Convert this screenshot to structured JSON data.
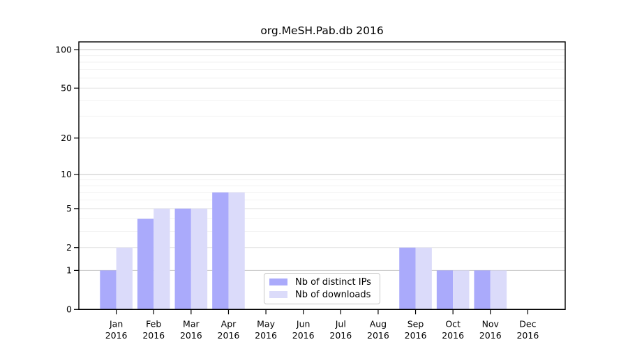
{
  "window": {
    "background": "#ffffff"
  },
  "chart_data": {
    "type": "bar",
    "title": "org.MeSH.Pab.db 2016",
    "categories": [
      "Jan",
      "Feb",
      "Mar",
      "Apr",
      "May",
      "Jun",
      "Jul",
      "Aug",
      "Sep",
      "Oct",
      "Nov",
      "Dec"
    ],
    "category_year": "2016",
    "series": [
      {
        "name": "Nb of distinct IPs",
        "color": "#aaaafb",
        "values": [
          1,
          4,
          5,
          7,
          0,
          0,
          0,
          0,
          2,
          1,
          1,
          0
        ]
      },
      {
        "name": "Nb of downloads",
        "color": "#dbdbfa",
        "values": [
          2,
          5,
          5,
          7,
          0,
          0,
          0,
          0,
          2,
          1,
          1,
          0
        ]
      }
    ],
    "yscale": "log1p",
    "yticks": [
      0,
      1,
      2,
      5,
      10,
      20,
      50,
      100
    ],
    "minor_gridlines": [
      3,
      4,
      6,
      7,
      8,
      9,
      30,
      40,
      60,
      70,
      80,
      90
    ],
    "ylim": [
      0,
      115
    ],
    "xlabel": "",
    "ylabel": "",
    "grid": "horizontal",
    "legend_position": "lower-center",
    "colors": {
      "decade_gridline": "#c6c6c6",
      "labeled_gridline": "#e2e2e2",
      "minor_gridline": "#f2f2f2",
      "axis": "#000000",
      "text": "#000000"
    }
  }
}
